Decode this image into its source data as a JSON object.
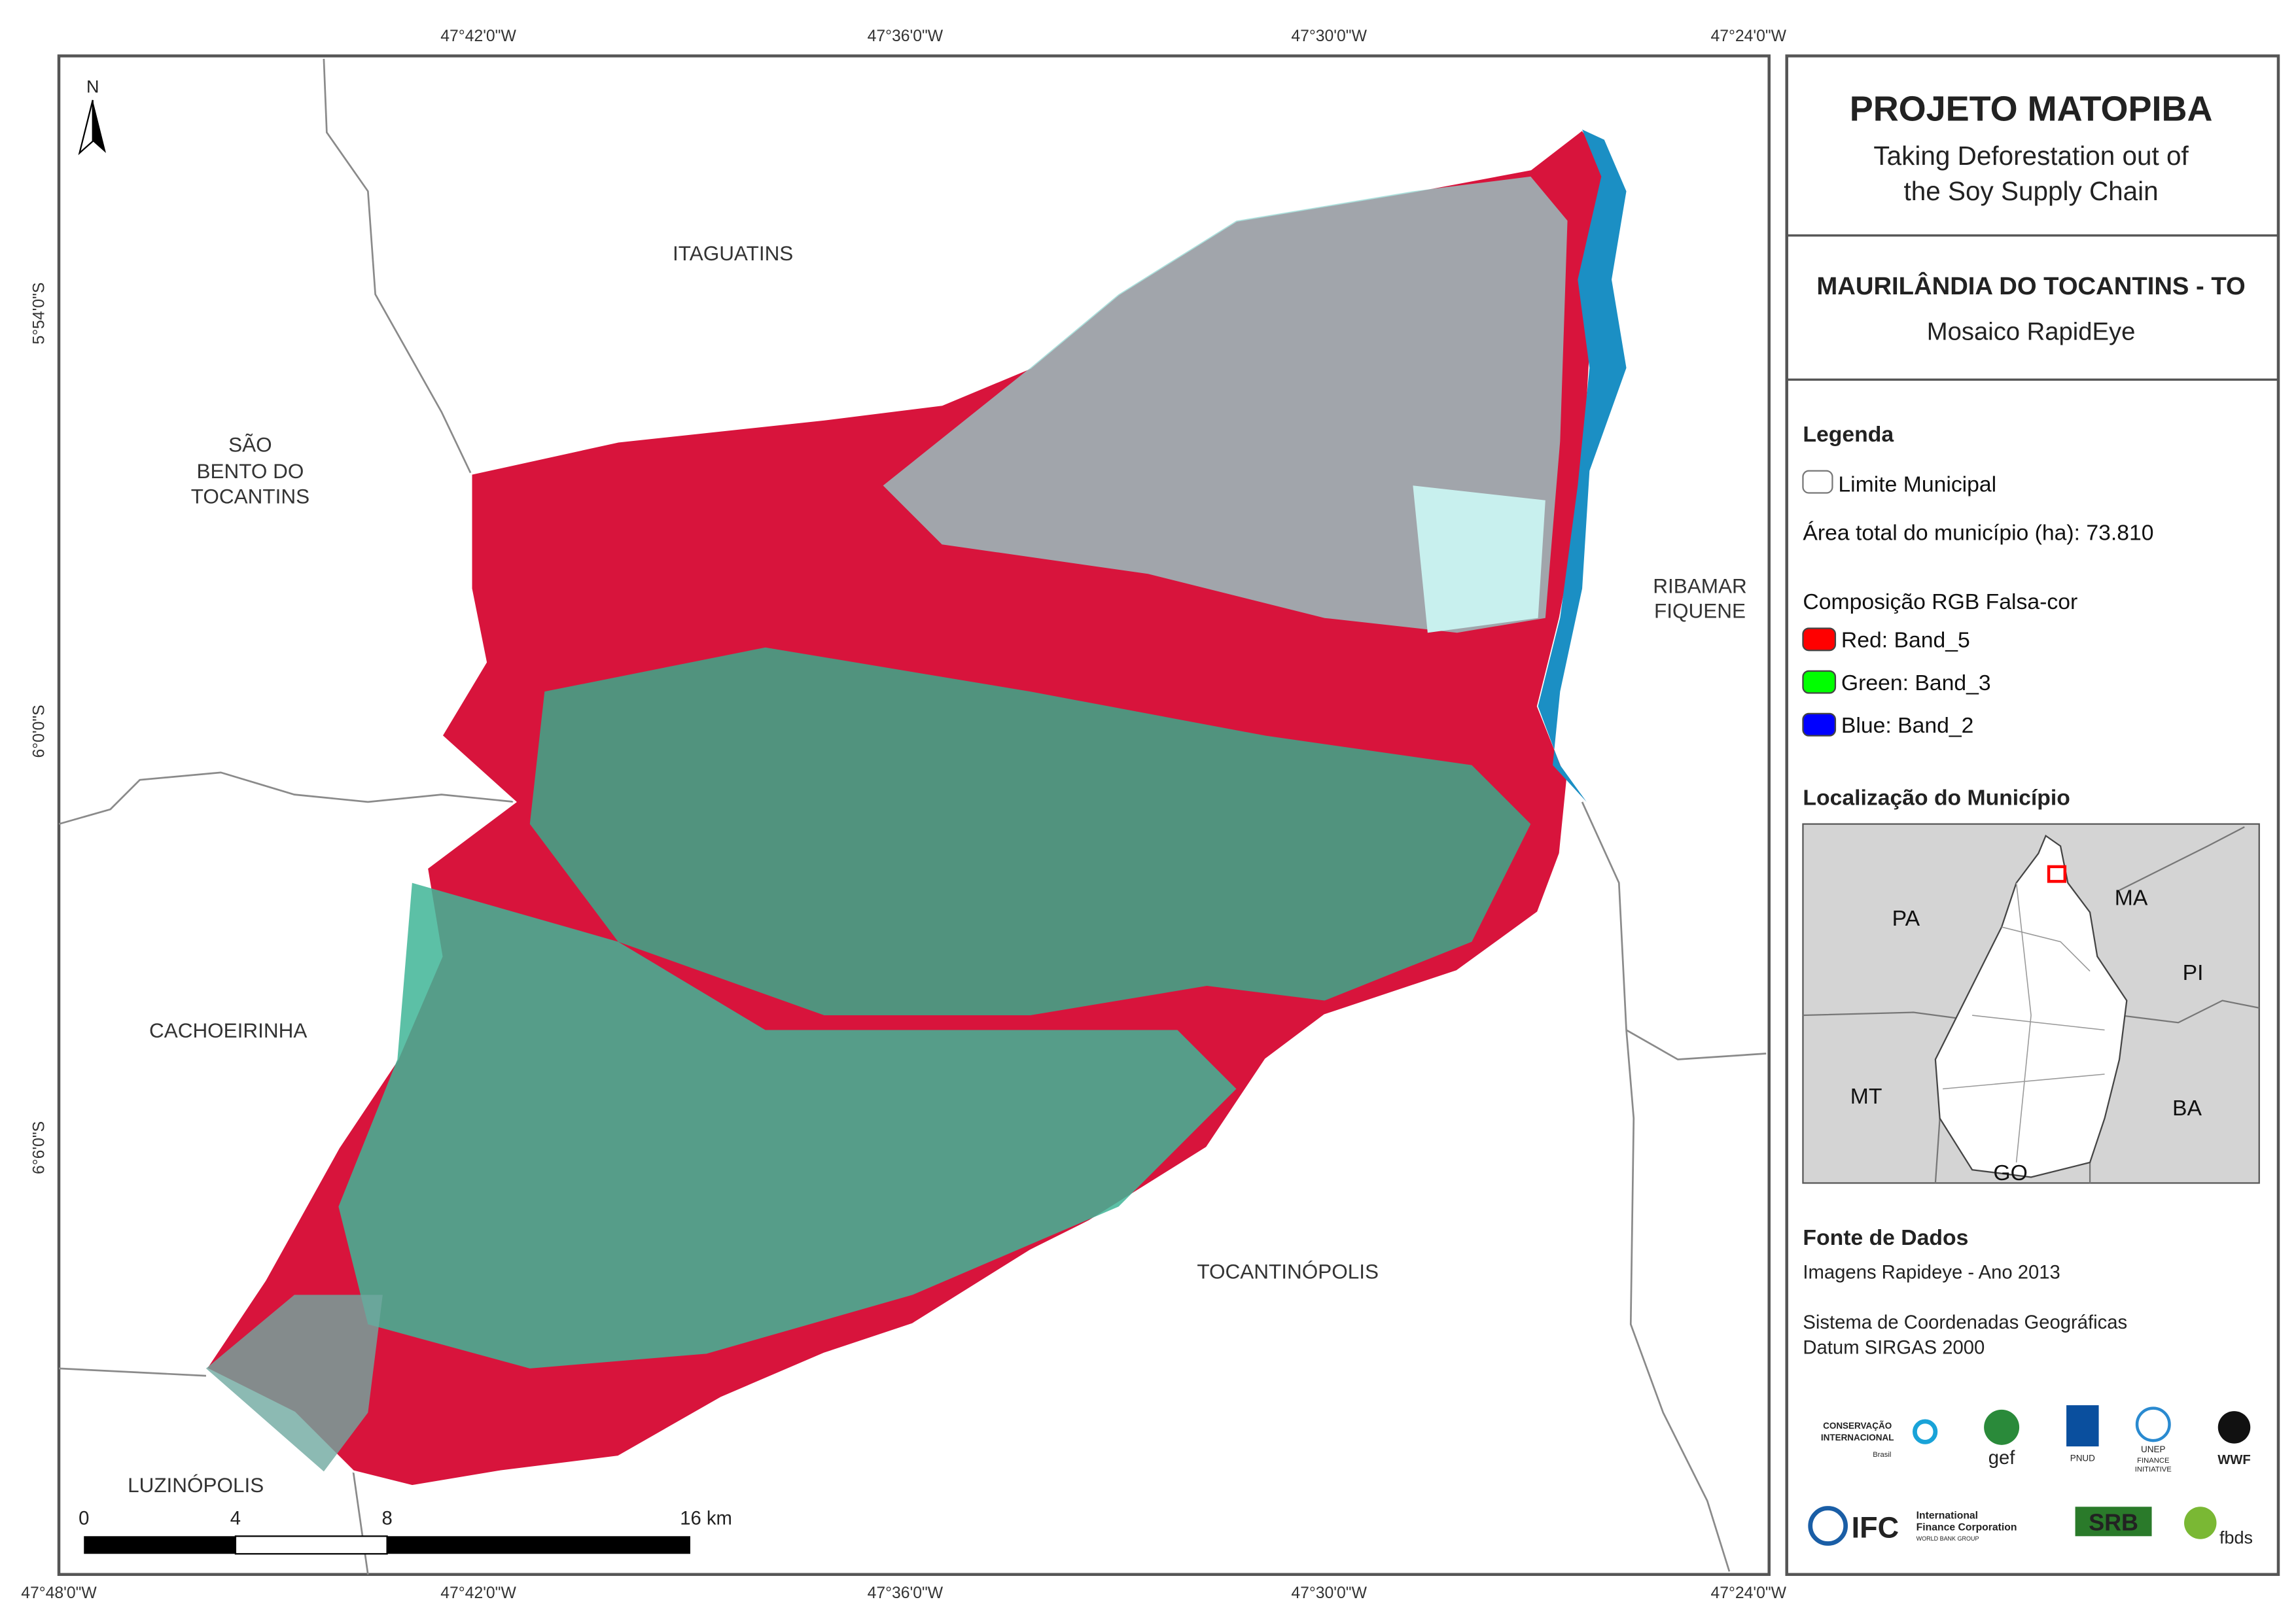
{
  "map": {
    "coord_labels": {
      "top": [
        "47°42'0\"W",
        "47°36'0\"W",
        "47°30'0\"W",
        "47°24'0\"W"
      ],
      "bottom": [
        "47°48'0\"W",
        "47°42'0\"W",
        "47°36'0\"W",
        "47°30'0\"W",
        "47°24'0\"W"
      ],
      "left": [
        "5°54'0\"S",
        "6°0'0\"S",
        "6°6'0\"S"
      ]
    },
    "north": "N",
    "places": {
      "itaguatins": "ITAGUATINS",
      "sao_bento": [
        "SÃO",
        "BENTO DO",
        "TOCANTINS"
      ],
      "ribamar": [
        "RIBAMAR",
        "FIQUENE"
      ],
      "cachoeirinha": "CACHOEIRINHA",
      "tocantinopolis": "TOCANTINÓPOLIS",
      "luzinopolis": "LUZINÓPOLIS"
    },
    "scale_bar": [
      "0",
      "4",
      "8",
      "16 km"
    ]
  },
  "panel": {
    "title": "PROJETO MATOPIBA",
    "subtitle": [
      "Taking Deforestation out of",
      "the Soy Supply Chain"
    ],
    "municipality": "MAURILÂNDIA DO TOCANTINS - TO",
    "mosaic": "Mosaico RapidEye",
    "legend": {
      "title": "Legenda",
      "boundary": "Limite Municipal",
      "area": "Área total do município (ha): 73.810",
      "composition": "Composição RGB Falsa-cor",
      "bands": [
        {
          "label": "Red:    Band_5",
          "color": "#ff0000"
        },
        {
          "label": "Green: Band_3",
          "color": "#00ff00"
        },
        {
          "label": "Blue:   Band_2",
          "color": "#0000ff"
        }
      ]
    },
    "location": {
      "title": "Localização do Município",
      "states": [
        "PA",
        "MA",
        "PI",
        "MT",
        "BA",
        "GO"
      ]
    },
    "sources": {
      "title": "Fonte de Dados",
      "lines": [
        "Imagens Rapideye - Ano 2013",
        "Sistema de Coordenadas Geográficas",
        "Datum SIRGAS 2000"
      ]
    },
    "logos": {
      "ci": [
        "CONSERVAÇÃO",
        "INTERNACIONAL",
        "Brasil"
      ],
      "gef": "gef",
      "pnud": "PNUD",
      "unep": [
        "UNEP",
        "FINANCE",
        "INITIATIVE"
      ],
      "wwf": "WWF",
      "ifc": [
        "IFC",
        "International",
        "Finance Corporation",
        "WORLD BANK GROUP"
      ],
      "srb": "SRB",
      "fbds": "fbds"
    }
  }
}
